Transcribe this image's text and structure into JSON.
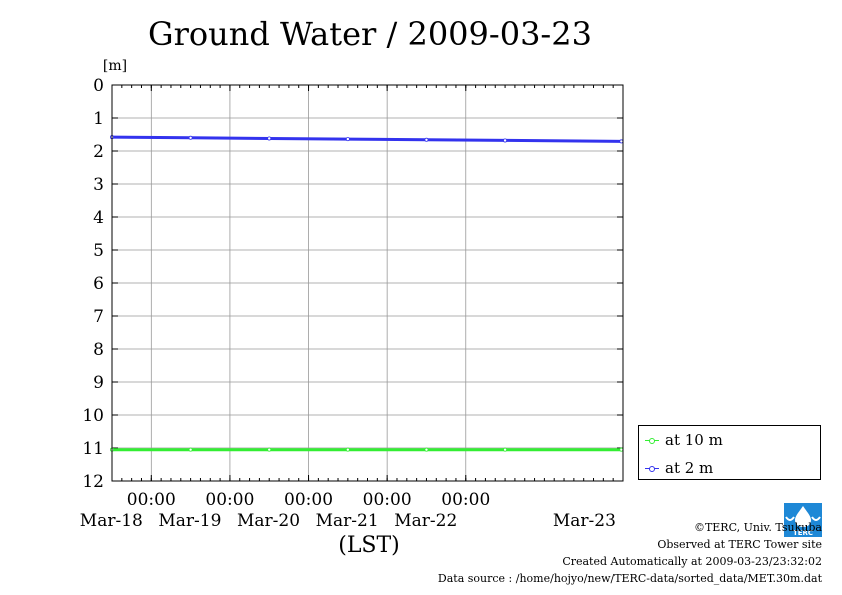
{
  "chart_data": {
    "type": "line",
    "title": "Ground Water / 2009-03-23",
    "ylabel": "[m]",
    "xlabel": "(LST)",
    "ylim": [
      0,
      12
    ],
    "y_inverted": true,
    "yticks": [
      "0",
      "1",
      "2",
      "3",
      "4",
      "5",
      "6",
      "7",
      "8",
      "9",
      "10",
      "11",
      "12"
    ],
    "xlim": [
      "2009-03-17T12:00",
      "2009-03-24T00:00"
    ],
    "xticks": [
      {
        "time": "00:00",
        "date": "Mar-18",
        "x": "2009-03-18T00:00"
      },
      {
        "time": "00:00",
        "date": "Mar-19",
        "x": "2009-03-19T00:00"
      },
      {
        "time": "00:00",
        "date": "Mar-20",
        "x": "2009-03-20T00:00"
      },
      {
        "time": "00:00",
        "date": "Mar-21",
        "x": "2009-03-21T00:00"
      },
      {
        "time": "00:00",
        "date": "Mar-22",
        "x": "2009-03-22T00:00"
      }
    ],
    "extra_date_label": "Mar-23",
    "grid": true,
    "legend_position": "bottom-right outside",
    "series": [
      {
        "name": "at 10 m",
        "color": "#33ee33",
        "x": [
          "2009-03-17T12:00",
          "2009-03-18T12:00",
          "2009-03-19T12:00",
          "2009-03-20T12:00",
          "2009-03-21T12:00",
          "2009-03-22T12:00",
          "2009-03-23T23:30"
        ],
        "values": [
          11.05,
          11.05,
          11.05,
          11.05,
          11.05,
          11.05,
          11.05
        ]
      },
      {
        "name": "at 2 m",
        "color": "#3333ee",
        "x": [
          "2009-03-17T12:00",
          "2009-03-18T12:00",
          "2009-03-19T12:00",
          "2009-03-20T12:00",
          "2009-03-21T12:00",
          "2009-03-22T12:00",
          "2009-03-23T23:30"
        ],
        "values": [
          1.58,
          1.6,
          1.62,
          1.64,
          1.66,
          1.68,
          1.71
        ]
      }
    ]
  },
  "credits": {
    "copyright": "©TERC, Univ. Tsukuba",
    "observed": "Observed at TERC Tower site",
    "created": "Created Automatically at 2009-03-23/23:32:02",
    "source": "Data source : /home/hojyo/new/TERC-data/sorted_data/MET.30m.dat"
  },
  "logo": {
    "text": "TERC",
    "color": "#1e88d6"
  }
}
